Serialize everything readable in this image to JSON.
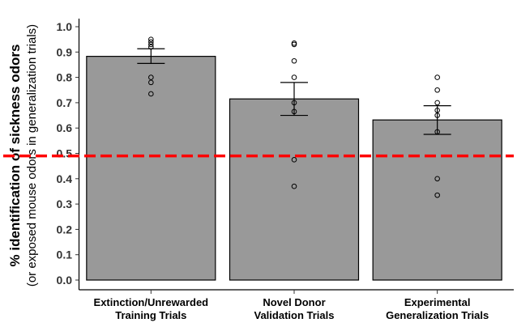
{
  "chart_data": {
    "type": "bar",
    "categories": [
      [
        "Extinction/Unrewarded",
        "Training Trials"
      ],
      [
        "Novel Donor",
        "Validation Trials"
      ],
      [
        "Experimental",
        "Generalization Trials"
      ]
    ],
    "values": [
      0.883,
      0.715,
      0.632
    ],
    "error": [
      {
        "low": 0.855,
        "high": 0.913
      },
      {
        "low": 0.65,
        "high": 0.78
      },
      {
        "low": 0.575,
        "high": 0.688
      }
    ],
    "points": [
      [
        0.95,
        0.94,
        0.93,
        0.92,
        0.8,
        0.78,
        0.735
      ],
      [
        0.935,
        0.93,
        0.865,
        0.8,
        0.7,
        0.665,
        0.475,
        0.37
      ],
      [
        0.8,
        0.75,
        0.7,
        0.67,
        0.65,
        0.585,
        0.4,
        0.335
      ]
    ],
    "reference_line": {
      "y": 0.49,
      "color": "#ff0000",
      "style": "dashed"
    },
    "ylabel": "% identification of sickness odors",
    "ylabel_sub": "(or exposed mouse odors in generalization trials)",
    "xlabel": "",
    "ylim": [
      0.0,
      1.0
    ],
    "yticks": [
      "0.0",
      "0.1",
      "0.2",
      "0.3",
      "0.4",
      "0.5",
      "0.6",
      "0.7",
      "0.8",
      "0.9",
      "1.0"
    ],
    "grid": false,
    "bar_color": "#999999",
    "bar_edge_color": "#000000",
    "point_color": "#000000"
  }
}
